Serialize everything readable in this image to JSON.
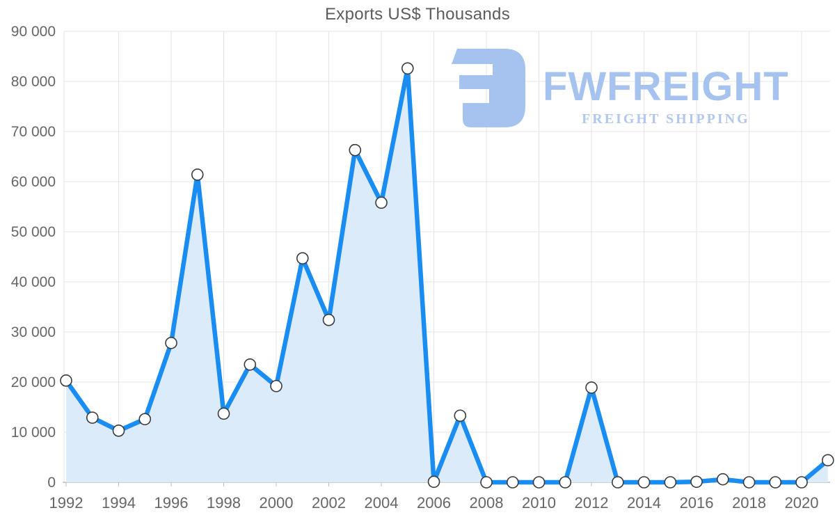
{
  "logo": {
    "brand": "FWFREIGHT",
    "tagline": "FREIGHT SHIPPING",
    "color": "#a6c3f0",
    "tagline_color": "#b2c6ee"
  },
  "chart_data": {
    "type": "area",
    "title": "Exports US$ Thousands",
    "xlabel": "",
    "ylabel": "",
    "x": [
      1992,
      1993,
      1994,
      1995,
      1996,
      1997,
      1998,
      1999,
      2000,
      2001,
      2002,
      2003,
      2004,
      2005,
      2006,
      2007,
      2008,
      2009,
      2010,
      2011,
      2012,
      2013,
      2014,
      2015,
      2016,
      2017,
      2018,
      2019,
      2020,
      2021
    ],
    "series": [
      {
        "name": "Exports US$ Thousands",
        "values": [
          20300,
          12900,
          10300,
          12600,
          27800,
          61400,
          13700,
          23500,
          19200,
          44700,
          32400,
          66300,
          55800,
          82600,
          100,
          13300,
          0,
          0,
          0,
          0,
          18900,
          0,
          0,
          0,
          100,
          600,
          0,
          0,
          0,
          4400
        ]
      }
    ],
    "ylim": [
      0,
      90000
    ],
    "ytick_step": 10000,
    "ytick_labels": [
      "0",
      "10 000",
      "20 000",
      "30 000",
      "40 000",
      "50 000",
      "60 000",
      "70 000",
      "80 000",
      "90 000"
    ],
    "xtick_years": [
      1992,
      1994,
      1996,
      1998,
      2000,
      2002,
      2004,
      2006,
      2008,
      2010,
      2012,
      2014,
      2016,
      2018,
      2020
    ],
    "grid": true,
    "legend": false,
    "colors": {
      "line": "#1a8df2",
      "fill": "#dcebfa",
      "marker_fill": "#ffffff",
      "marker_stroke": "#3a3a3a",
      "grid": "#e4e4e4",
      "axis": "#bdbdbd",
      "tick_label": "#666666",
      "title": "#5c5c5c"
    }
  }
}
